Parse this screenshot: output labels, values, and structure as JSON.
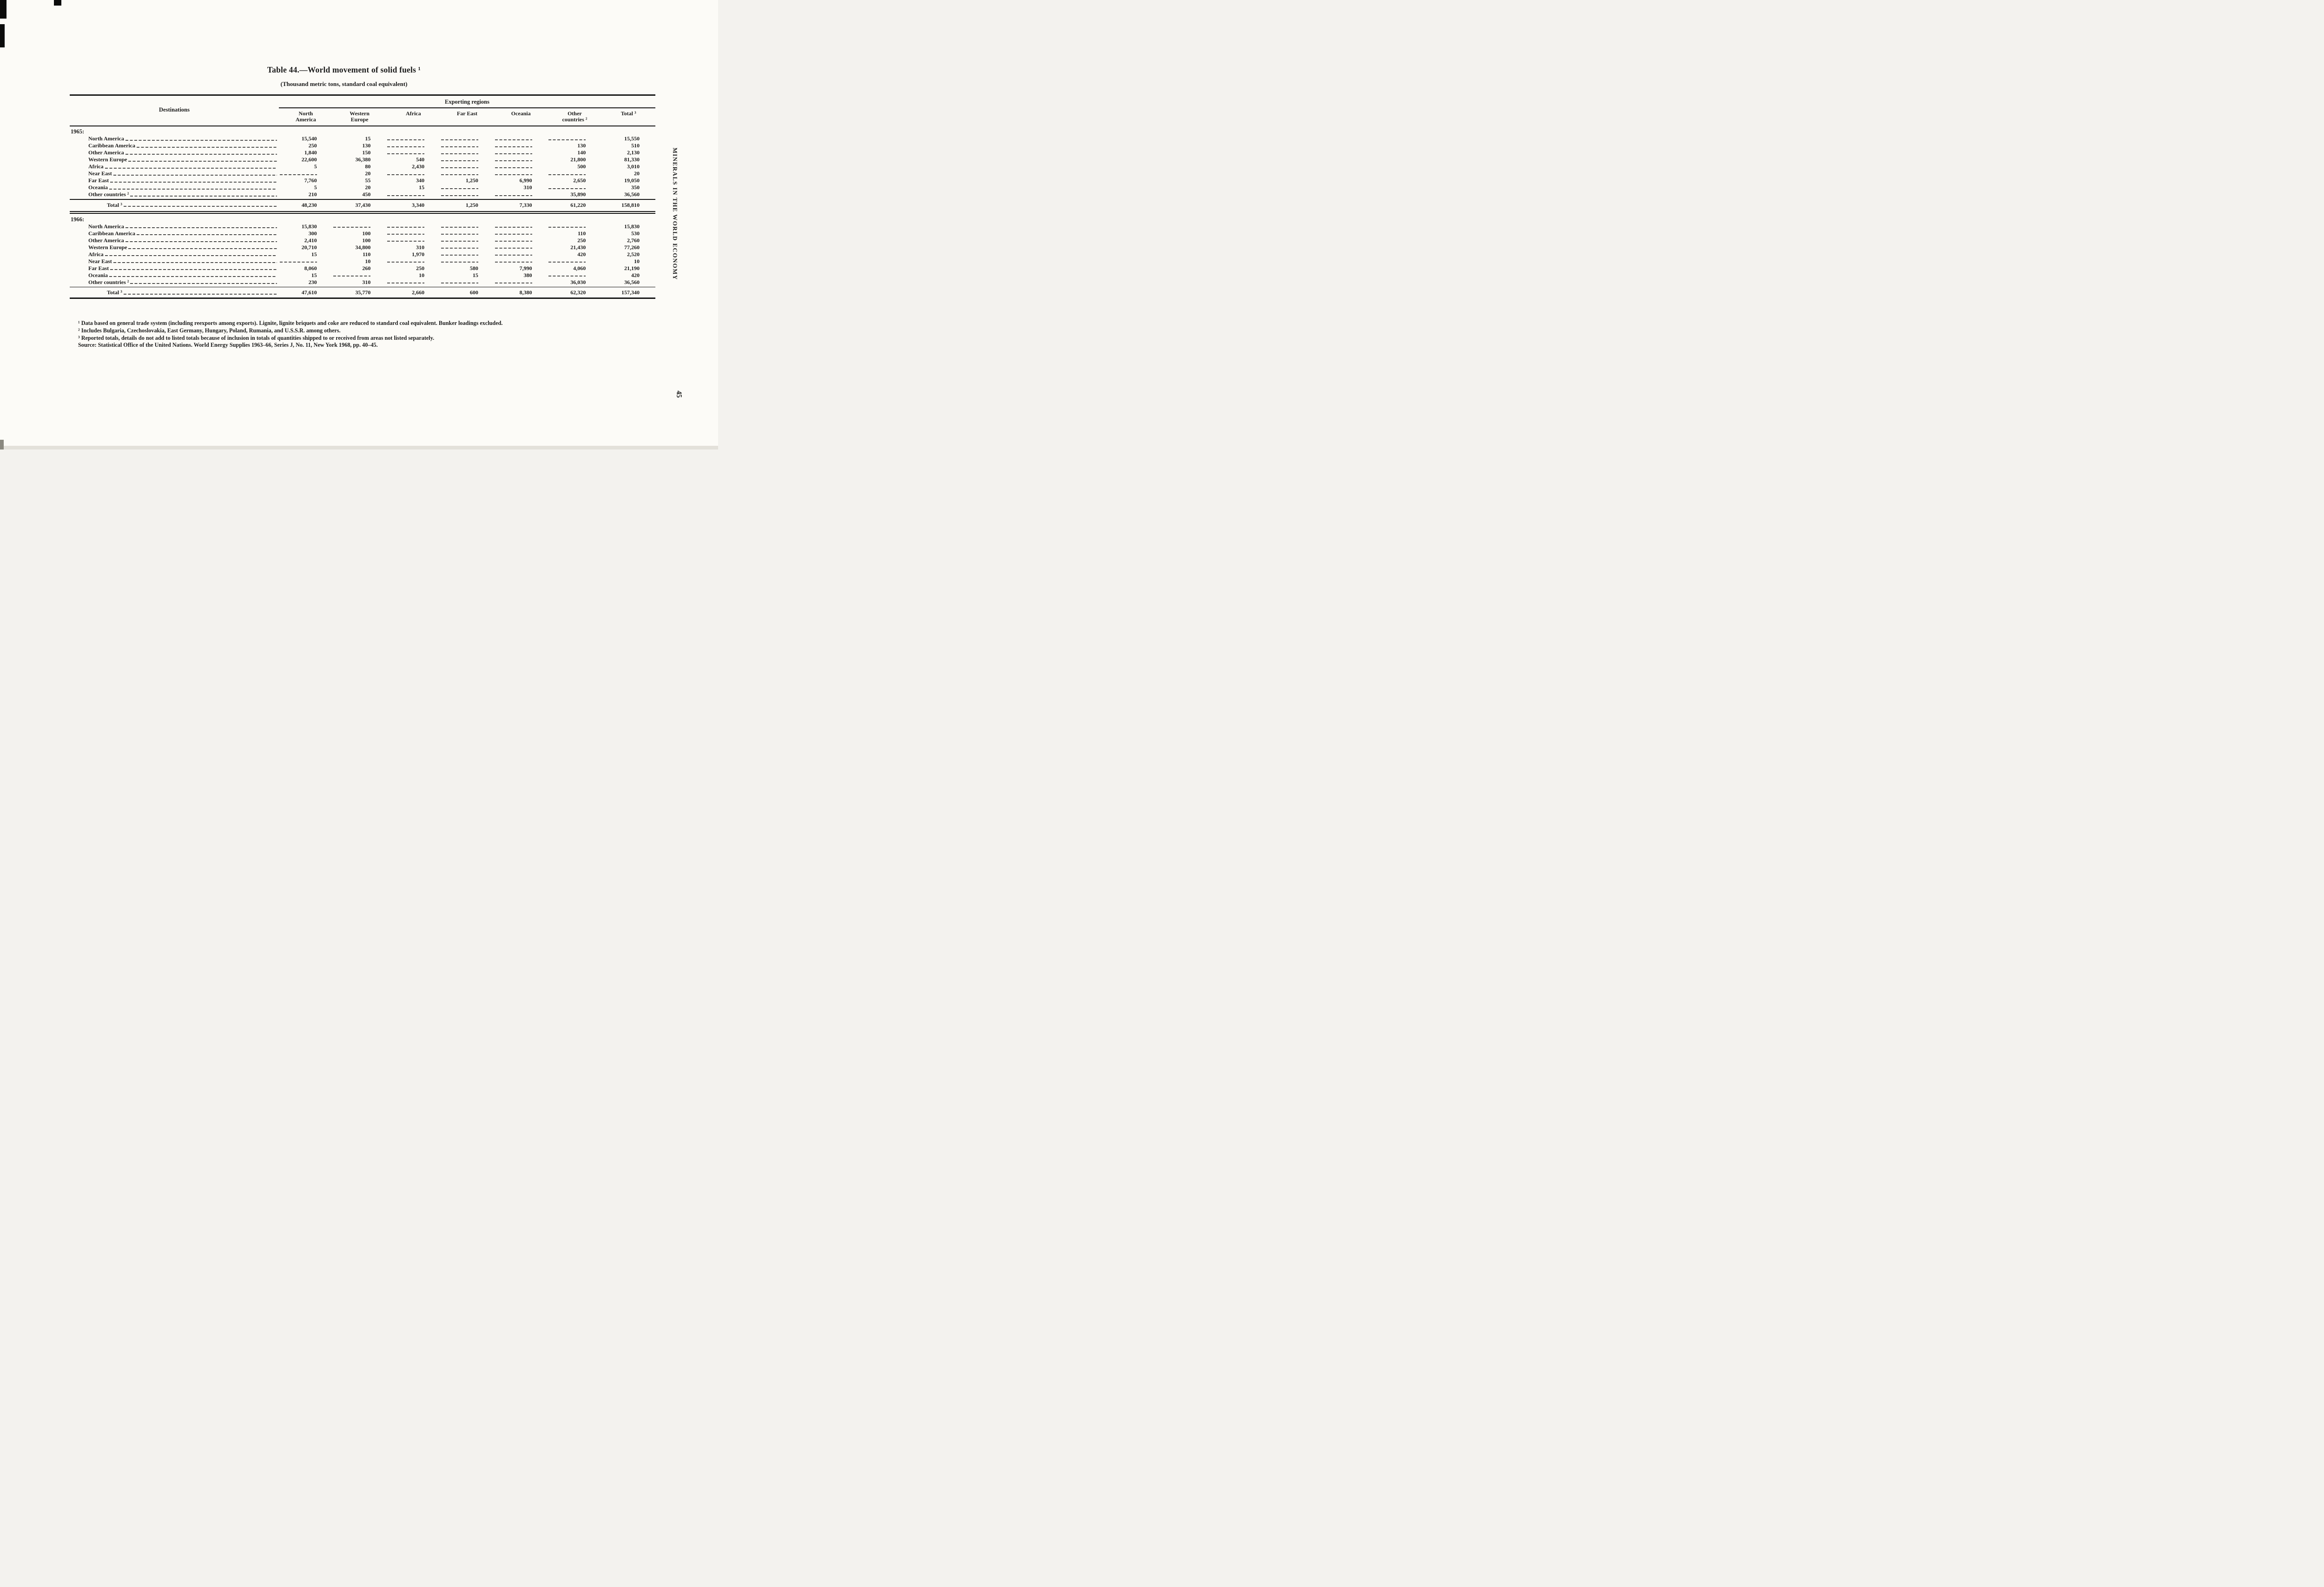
{
  "page": {
    "side_text": "MINERALS IN THE WORLD ECONOMY",
    "page_number": "45"
  },
  "table": {
    "title": "Table 44.—World movement of solid fuels ¹",
    "subtitle": "(Thousand metric tons, standard coal equivalent)",
    "col_group_header": "Exporting regions",
    "row_header": "Destinations",
    "columns": [
      "North\nAmerica",
      "Western\nEurope",
      "Africa",
      "Far East",
      "Oceania",
      "Other\ncountries ²",
      "Total ³"
    ],
    "sections": [
      {
        "year": "1965:",
        "rows": [
          {
            "label": "North America",
            "values": [
              "15,540",
              "15",
              "",
              "",
              "",
              "",
              "15,550"
            ]
          },
          {
            "label": "Caribbean America",
            "values": [
              "250",
              "130",
              "",
              "",
              "",
              "130",
              "510"
            ]
          },
          {
            "label": "Other America",
            "values": [
              "1,840",
              "150",
              "",
              "",
              "",
              "140",
              "2,130"
            ]
          },
          {
            "label": "Western Europe",
            "values": [
              "22,600",
              "36,380",
              "540",
              "",
              "",
              "21,800",
              "81,330"
            ]
          },
          {
            "label": "Africa",
            "values": [
              "5",
              "80",
              "2,430",
              "",
              "",
              "500",
              "3,010"
            ]
          },
          {
            "label": "Near East",
            "values": [
              "",
              "20",
              "",
              "",
              "",
              "",
              "20"
            ]
          },
          {
            "label": "Far East",
            "values": [
              "7,760",
              "55",
              "340",
              "1,250",
              "6,990",
              "2,650",
              "19,050"
            ]
          },
          {
            "label": "Oceania",
            "values": [
              "5",
              "20",
              "15",
              "",
              "310",
              "",
              "350"
            ]
          },
          {
            "label": "Other countries ²",
            "values": [
              "210",
              "450",
              "",
              "",
              "",
              "35,890",
              "36,560"
            ]
          }
        ],
        "total": {
          "label": "Total ³",
          "values": [
            "48,230",
            "37,430",
            "3,340",
            "1,250",
            "7,330",
            "61,220",
            "158,810"
          ]
        }
      },
      {
        "year": "1966:",
        "rows": [
          {
            "label": "North America",
            "values": [
              "15,830",
              "",
              "",
              "",
              "",
              "",
              "15,830"
            ]
          },
          {
            "label": "Caribbean America",
            "values": [
              "300",
              "100",
              "",
              "",
              "",
              "110",
              "530"
            ]
          },
          {
            "label": "Other America",
            "values": [
              "2,410",
              "100",
              "",
              "",
              "",
              "250",
              "2,760"
            ]
          },
          {
            "label": "Western Europe",
            "values": [
              "20,710",
              "34,800",
              "310",
              "",
              "",
              "21,430",
              "77,260"
            ]
          },
          {
            "label": "Africa",
            "values": [
              "15",
              "110",
              "1,970",
              "",
              "",
              "420",
              "2,520"
            ]
          },
          {
            "label": "Near East",
            "values": [
              "",
              "10",
              "",
              "",
              "",
              "",
              "10"
            ]
          },
          {
            "label": "Far East",
            "values": [
              "8,060",
              "260",
              "250",
              "580",
              "7,990",
              "4,060",
              "21,190"
            ]
          },
          {
            "label": "Oceania",
            "values": [
              "15",
              "",
              "10",
              "15",
              "380",
              "",
              "420"
            ]
          },
          {
            "label": "Other countries ²",
            "values": [
              "230",
              "310",
              "",
              "",
              "",
              "36,030",
              "36,560"
            ]
          }
        ],
        "total": {
          "label": "Total ³",
          "values": [
            "47,610",
            "35,770",
            "2,660",
            "600",
            "8,380",
            "62,320",
            "157,340"
          ]
        }
      }
    ]
  },
  "footnotes": [
    "¹ Data based on general trade system (including reexports among exports). Lignite, lignite briquets and coke are reduced to standard coal equivalent. Bunker loadings excluded.",
    "² Includes Bulgaria, Czechoslovakia, East Germany, Hungary, Poland, Rumania, and U.S.S.R. among others.",
    "³ Reported totals, details do not add to listed totals because of inclusion in totals of quantities shipped to or received from areas not listed separately."
  ],
  "source": "Source: Statistical Office of the United Nations. World Energy Supplies 1963–66, Series J, No. 11, New York 1968, pp. 40–45."
}
